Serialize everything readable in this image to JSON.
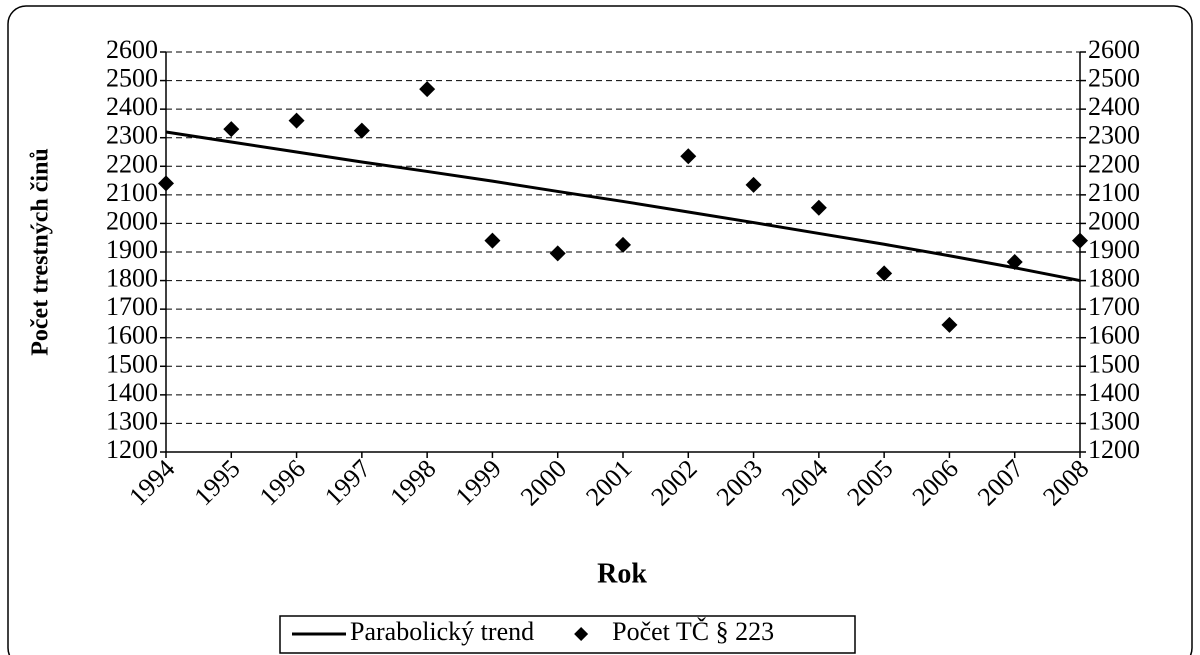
{
  "chart_data": {
    "type": "combo",
    "y_label": "Počet trestných činů",
    "x_label": "Rok",
    "categories": [
      "1994",
      "1995",
      "1996",
      "1997",
      "1998",
      "1999",
      "2000",
      "2001",
      "2002",
      "2003",
      "2004",
      "2005",
      "2006",
      "2007",
      "2008"
    ],
    "series": [
      {
        "name": "Parabolický trend",
        "type": "line",
        "color": "#000000",
        "values": [
          2320,
          2285,
          2250,
          2215,
          2182,
          2148,
          2112,
          2077,
          2040,
          2003,
          1965,
          1927,
          1887,
          1845,
          1800
        ]
      },
      {
        "name": "Počet TČ § 223",
        "type": "scatter",
        "color": "#000000",
        "values": [
          2140,
          2330,
          2360,
          2325,
          2470,
          1940,
          1895,
          1925,
          2235,
          2135,
          2055,
          1825,
          1645,
          1865,
          1940
        ]
      }
    ],
    "ylim": [
      1200,
      2600
    ],
    "yticks": [
      1200,
      1300,
      1400,
      1500,
      1600,
      1700,
      1800,
      1900,
      2000,
      2100,
      2200,
      2300,
      2400,
      2500,
      2600
    ],
    "y2lim": [
      1200,
      2600
    ],
    "y2ticks": [
      1200,
      1300,
      1400,
      1500,
      1600,
      1700,
      1800,
      1900,
      2000,
      2100,
      2200,
      2300,
      2400,
      2500,
      2600
    ],
    "grid": true,
    "legend": "bottom"
  }
}
